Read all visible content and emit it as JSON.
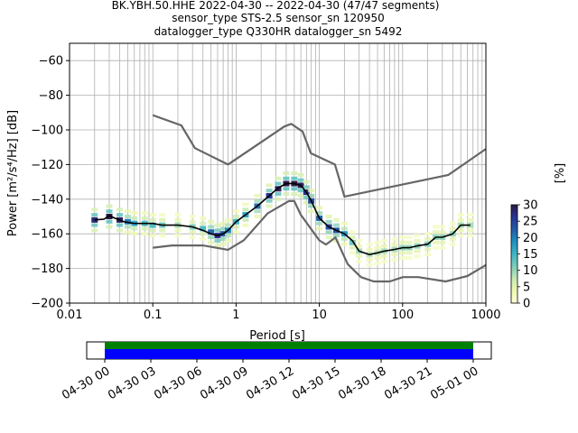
{
  "title_lines": [
    "BK.YBH.50.HHE   2022-04-30 -- 2022-04-30  (47/47 segments)",
    "sensor_type STS-2.5 sensor_sn 120950",
    "datalogger_type Q330HR datalogger_sn 5492"
  ],
  "chart_data": [
    {
      "type": "heatmap",
      "xlabel": "Period [s]",
      "ylabel": "Power [m²/s⁴/Hz] [dB]",
      "xscale": "log",
      "xlim": [
        0.01,
        1000
      ],
      "ylim": [
        -200,
        -50
      ],
      "x_ticks": [
        {
          "value": 0.01,
          "label": "0.01"
        },
        {
          "value": 0.1,
          "label": "0.1"
        },
        {
          "value": 1,
          "label": "1"
        },
        {
          "value": 10,
          "label": "10"
        },
        {
          "value": 100,
          "label": "100"
        },
        {
          "value": 1000,
          "label": "1000"
        }
      ],
      "y_ticks": [
        -60,
        -80,
        -100,
        -120,
        -140,
        -160,
        -180,
        -200
      ],
      "grid": true,
      "series": [
        {
          "role": "noise-model-high",
          "color": "#666666",
          "x": [
            0.1,
            0.22,
            0.32,
            0.8,
            3.8,
            4.6,
            6.3,
            7.9,
            15.4,
            20,
            354.8,
            1000
          ],
          "y": [
            -91.5,
            -97.4,
            -110.5,
            -120,
            -98,
            -96.5,
            -101,
            -113.5,
            -120,
            -138.5,
            -126,
            -111
          ]
        },
        {
          "role": "noise-model-low",
          "color": "#666666",
          "x": [
            0.1,
            0.17,
            0.4,
            0.8,
            1.24,
            2.4,
            4.3,
            5,
            6,
            10,
            12,
            15.6,
            21.9,
            31.6,
            45,
            70,
            101,
            154,
            328,
            600,
            1000
          ],
          "y": [
            -168,
            -166.7,
            -166.7,
            -169.2,
            -163.7,
            -148.1,
            -141.1,
            -141.1,
            -149,
            -163.8,
            -166.2,
            -162.1,
            -177.5,
            -185,
            -187.5,
            -187.5,
            -185,
            -185,
            -187.5,
            -184.4,
            -178
          ]
        },
        {
          "role": "mode",
          "color": "#000000",
          "x": [
            0.02,
            0.026,
            0.03,
            0.035,
            0.045,
            0.06,
            0.08,
            0.1,
            0.13,
            0.2,
            0.3,
            0.4,
            0.5,
            0.6,
            0.7,
            0.8,
            1,
            1.3,
            1.8,
            2.5,
            3.2,
            4,
            5,
            6,
            7,
            8,
            10,
            13,
            16,
            20,
            25,
            30,
            40,
            50,
            60,
            80,
            100,
            120,
            150,
            200,
            250,
            300,
            400,
            500,
            650
          ],
          "y": [
            -152,
            -151.5,
            -149.5,
            -151,
            -153,
            -154,
            -154,
            -154,
            -155,
            -155,
            -156,
            -158,
            -160,
            -161,
            -160,
            -158,
            -153,
            -149,
            -144,
            -138,
            -133.5,
            -131,
            -131,
            -132,
            -136,
            -141,
            -151,
            -156,
            -158,
            -160,
            -164,
            -170,
            -172,
            -171,
            -170,
            -169,
            -168,
            -168,
            -167,
            -166,
            -162,
            -162,
            -160,
            -155,
            -155
          ]
        }
      ],
      "histogram_cells": [
        [
          0.02,
          -152,
          28
        ],
        [
          0.03,
          -150,
          30
        ],
        [
          0.04,
          -152,
          29
        ],
        [
          0.05,
          -153,
          20
        ],
        [
          0.06,
          -154,
          16
        ],
        [
          0.08,
          -154,
          14
        ],
        [
          0.1,
          -155,
          14
        ],
        [
          0.13,
          -155,
          12
        ],
        [
          0.2,
          -155,
          9
        ],
        [
          0.3,
          -156,
          11
        ],
        [
          0.4,
          -157,
          14
        ],
        [
          0.5,
          -159,
          22
        ],
        [
          0.6,
          -161,
          27
        ],
        [
          0.7,
          -160,
          23
        ],
        [
          0.8,
          -158,
          19
        ],
        [
          1,
          -153,
          15
        ],
        [
          1.3,
          -149,
          17
        ],
        [
          1.8,
          -144,
          21
        ],
        [
          2.5,
          -138,
          26
        ],
        [
          3.2,
          -134,
          29
        ],
        [
          4,
          -131,
          30
        ],
        [
          5,
          -131,
          30
        ],
        [
          6,
          -132,
          29
        ],
        [
          7,
          -136,
          27
        ],
        [
          8,
          -141,
          24
        ],
        [
          10,
          -151,
          22
        ],
        [
          13,
          -156,
          24
        ],
        [
          16,
          -158,
          23
        ],
        [
          20,
          -160,
          18
        ],
        [
          25,
          -165,
          12
        ],
        [
          30,
          -170,
          9
        ],
        [
          40,
          -172,
          8
        ],
        [
          50,
          -171,
          8
        ],
        [
          60,
          -170,
          9
        ],
        [
          80,
          -169,
          9
        ],
        [
          100,
          -168,
          10
        ],
        [
          120,
          -168,
          10
        ],
        [
          150,
          -167,
          10
        ],
        [
          200,
          -166,
          11
        ],
        [
          250,
          -162,
          10
        ],
        [
          300,
          -162,
          10
        ],
        [
          400,
          -160,
          10
        ],
        [
          500,
          -155,
          9
        ],
        [
          650,
          -155,
          9
        ]
      ],
      "colorbar": {
        "label": "[%]",
        "range": [
          0,
          30
        ],
        "ticks": [
          0,
          5,
          10,
          15,
          20,
          25,
          30
        ],
        "colormap": [
          "#ffffd9",
          "#edf8b1",
          "#c7e9b4",
          "#7fcdbb",
          "#41b6c4",
          "#1d91c0",
          "#225ea8",
          "#253494",
          "#2e1a47"
        ]
      }
    },
    {
      "type": "timeline",
      "xlim": [
        "04-30 00",
        "05-01 00"
      ],
      "x_ticks": [
        "04-30 00",
        "04-30 03",
        "04-30 06",
        "04-30 09",
        "04-30 12",
        "04-30 15",
        "04-30 18",
        "04-30 21",
        "05-01 00"
      ],
      "coverage_colors": {
        "data": "#008000",
        "used": "#0000ff"
      }
    }
  ]
}
